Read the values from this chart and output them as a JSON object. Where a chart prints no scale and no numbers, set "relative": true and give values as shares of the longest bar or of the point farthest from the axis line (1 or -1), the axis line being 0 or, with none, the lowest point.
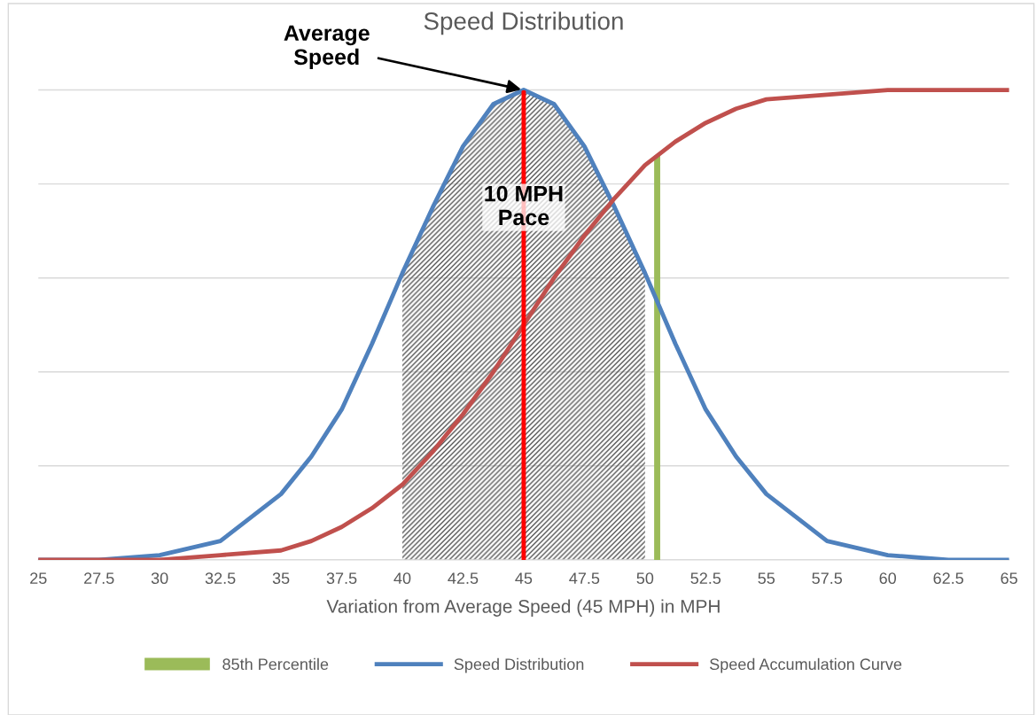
{
  "chart_data": {
    "type": "line",
    "title": "Speed Distribution",
    "xlabel": "Variation from Average Speed (45 MPH) in MPH",
    "relative": true,
    "x": [
      25,
      27.5,
      30,
      32.5,
      35,
      36.25,
      37.5,
      38.75,
      40,
      41.25,
      42.5,
      43.75,
      45,
      46.25,
      47.5,
      48.75,
      50,
      51.25,
      52.5,
      53.75,
      55,
      57.5,
      60,
      62.5,
      65
    ],
    "series": [
      {
        "name": "85th Percentile",
        "type": "bar",
        "color": "#9bbb59",
        "x": [
          50.5
        ],
        "values": [
          0.86
        ]
      },
      {
        "name": "Speed Distribution",
        "color": "#4f81bd",
        "values": [
          0.0,
          0.0,
          0.01,
          0.04,
          0.14,
          0.22,
          0.32,
          0.46,
          0.61,
          0.75,
          0.88,
          0.97,
          1.0,
          0.97,
          0.88,
          0.75,
          0.61,
          0.46,
          0.32,
          0.22,
          0.14,
          0.04,
          0.01,
          0.0,
          0.0
        ]
      },
      {
        "name": "Speed Accumulation Curve",
        "color": "#c0504d",
        "values": [
          0.0,
          0.0,
          0.0,
          0.01,
          0.02,
          0.04,
          0.07,
          0.11,
          0.16,
          0.23,
          0.31,
          0.4,
          0.5,
          0.6,
          0.69,
          0.77,
          0.84,
          0.89,
          0.93,
          0.96,
          0.98,
          0.99,
          1.0,
          1.0,
          1.0
        ]
      }
    ],
    "xlim": [
      25,
      65
    ],
    "xticks": [
      25,
      {
        "value": 27.5,
        "label": "27.5"
      },
      30,
      {
        "value": 32.5,
        "label": "32.5"
      },
      35,
      {
        "value": 37.5,
        "label": "37.5"
      },
      40,
      {
        "value": 42.5,
        "label": "42.5"
      },
      45,
      {
        "value": 47.5,
        "label": "47.5"
      },
      50,
      {
        "value": 52.5,
        "label": "52.5"
      },
      55,
      {
        "value": 57.5,
        "label": "57.5"
      },
      60,
      {
        "value": 62.5,
        "label": "62.5"
      },
      65
    ],
    "ref_lines": [
      {
        "axis": "x",
        "value": 45,
        "color": "#ff0000"
      }
    ],
    "bands": [
      {
        "axis": "x",
        "from": 40,
        "to": 50,
        "label": "10 MPH\nPace"
      }
    ],
    "annotations": [
      {
        "text": "Average\nSpeed",
        "x": 45,
        "y": 1.0
      }
    ],
    "grid": "y",
    "legend": "bottom",
    "tick_labels": "x",
    "marker": "none",
    "line_style": "solid"
  }
}
